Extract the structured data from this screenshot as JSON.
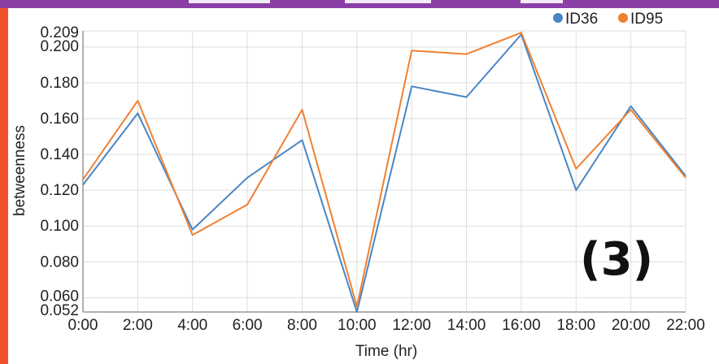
{
  "panel_label": "(3)",
  "colors": {
    "top_bar": "#8b3fa6",
    "left_bar": "#f0502a",
    "grid": "#dddddd",
    "axis": "#666666"
  },
  "chart_data": {
    "type": "line",
    "xlabel": "Time (hr)",
    "ylabel": "betweenness",
    "categories": [
      "0:00",
      "2:00",
      "4:00",
      "6:00",
      "8:00",
      "10:00",
      "12:00",
      "14:00",
      "16:00",
      "18:00",
      "20:00",
      "22:00"
    ],
    "ylim": [
      0.052,
      0.209
    ],
    "yticks": [
      0.052,
      0.06,
      0.08,
      0.1,
      0.12,
      0.14,
      0.16,
      0.18,
      0.2,
      0.209
    ],
    "ytick_labels": [
      "0.052",
      "0.060",
      "0.080",
      "0.100",
      "0.120",
      "0.140",
      "0.160",
      "0.180",
      "0.200",
      "0.209"
    ],
    "grid": true,
    "legend_position": "top-right",
    "series": [
      {
        "name": "ID36",
        "color": "#4a86c5",
        "values": [
          0.123,
          0.163,
          0.098,
          0.127,
          0.148,
          0.052,
          0.178,
          0.172,
          0.207,
          0.12,
          0.167,
          0.128
        ]
      },
      {
        "name": "ID95",
        "color": "#f08030",
        "values": [
          0.126,
          0.17,
          0.095,
          0.112,
          0.165,
          0.055,
          0.198,
          0.196,
          0.208,
          0.132,
          0.165,
          0.127
        ]
      }
    ]
  }
}
